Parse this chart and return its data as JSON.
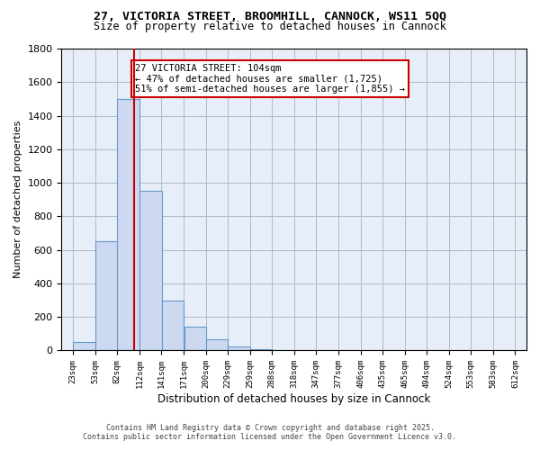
{
  "title_line1": "27, VICTORIA STREET, BROOMHILL, CANNOCK, WS11 5QQ",
  "title_line2": "Size of property relative to detached houses in Cannock",
  "xlabel": "Distribution of detached houses by size in Cannock",
  "ylabel": "Number of detached properties",
  "bins": [
    23,
    53,
    82,
    112,
    141,
    171,
    200,
    229,
    259,
    288,
    318,
    347,
    377,
    406,
    435,
    465,
    494,
    524,
    553,
    583,
    612
  ],
  "counts": [
    50,
    650,
    1500,
    950,
    300,
    140,
    65,
    25,
    10,
    5,
    3,
    2,
    2,
    1,
    1,
    1,
    1,
    1,
    1,
    1
  ],
  "bar_color": "#ccd9f0",
  "bar_edge_color": "#6699cc",
  "property_size": 104,
  "vline_color": "#cc0000",
  "annotation_text": "27 VICTORIA STREET: 104sqm\n← 47% of detached houses are smaller (1,725)\n51% of semi-detached houses are larger (1,855) →",
  "annotation_box_edge": "#cc0000",
  "annotation_box_face": "#ffffff",
  "ylim": [
    0,
    1800
  ],
  "yticks": [
    0,
    200,
    400,
    600,
    800,
    1000,
    1200,
    1400,
    1600,
    1800
  ],
  "grid_color": "#aabbcc",
  "bg_color": "#e8eef8",
  "footer_line1": "Contains HM Land Registry data © Crown copyright and database right 2025.",
  "footer_line2": "Contains public sector information licensed under the Open Government Licence v3.0.",
  "tick_labels": [
    "23sqm",
    "53sqm",
    "82sqm",
    "112sqm",
    "141sqm",
    "171sqm",
    "200sqm",
    "229sqm",
    "259sqm",
    "288sqm",
    "318sqm",
    "347sqm",
    "377sqm",
    "406sqm",
    "435sqm",
    "465sqm",
    "494sqm",
    "524sqm",
    "553sqm",
    "583sqm",
    "612sqm"
  ]
}
